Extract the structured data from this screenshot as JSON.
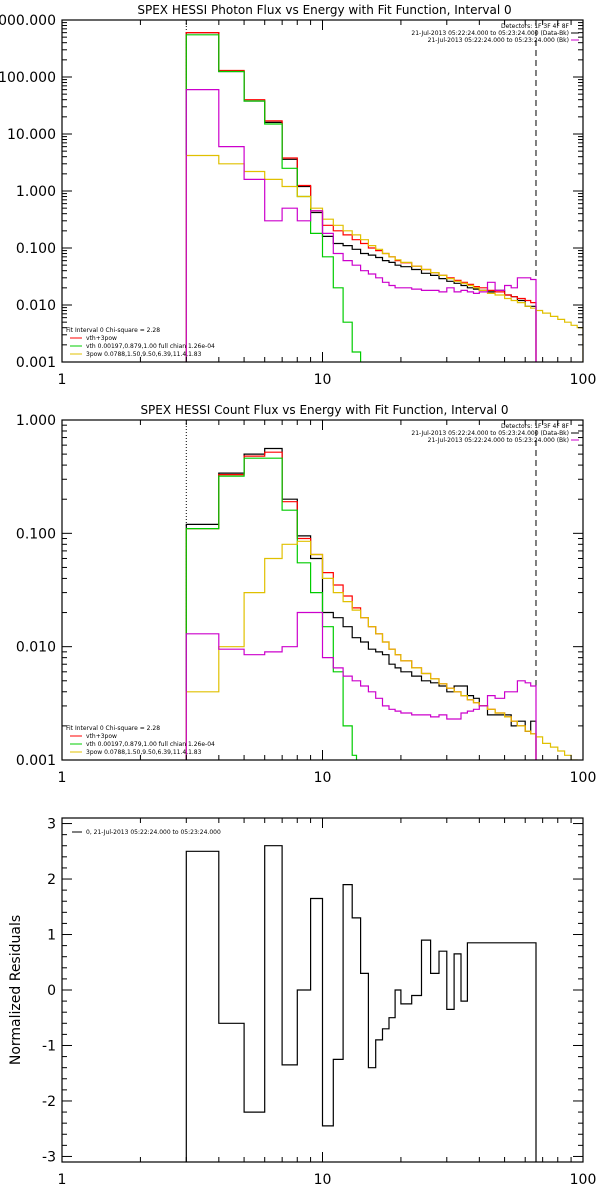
{
  "chart_data": [
    {
      "type": "line",
      "title": "SPEX HESSI Photon Flux vs Energy with Fit Function, Interval 0",
      "xscale": "log",
      "yscale": "log",
      "xlim": [
        1,
        100
      ],
      "ylim": [
        0.001,
        1000
      ],
      "xticks": [
        "1",
        "10",
        "100"
      ],
      "yticks": [
        "0.001",
        "0.010",
        "0.100",
        "1.000",
        "10.000",
        "100.000",
        "1000.000"
      ],
      "ytick_values": [
        0.001,
        0.01,
        0.1,
        1,
        10,
        100,
        1000
      ],
      "xlabel": "",
      "ylabel": "",
      "vlines": [
        {
          "x": 3.0,
          "style": "dotted"
        },
        {
          "x": 66,
          "style": "dashed"
        }
      ],
      "bin_edges": [
        3,
        3.5,
        4,
        4.5,
        5,
        5.5,
        6,
        6.5,
        7,
        7.5,
        8,
        8.5,
        9,
        9.5,
        10,
        10.5,
        11,
        11.5,
        12,
        12.5,
        13,
        13.5,
        14,
        15,
        16,
        17,
        18,
        19,
        20,
        22,
        24,
        26,
        28,
        30,
        32,
        34,
        36,
        38,
        40,
        43,
        46,
        50,
        53,
        56,
        60,
        63,
        66,
        70,
        75,
        80,
        85,
        90,
        95,
        100
      ],
      "legend_top": [
        "Detectors: 1F 3F 4F 8F",
        "21-Jul-2013 05:22:24.000 to 05:23:24.000 (Data-Bk)",
        "21-Jul-2013 05:22:24.000 to 05:23:24.000 (Bk)"
      ],
      "legend_bottom": [
        "Fit Interval 0   Chi-square = 2.28",
        "vth+3pow",
        "vth 0.00197,0.879,1.00  full chian 1.26e-04",
        "3pow 0.0788,1.50,9.50,6.39,11.4,1.83"
      ],
      "series": [
        {
          "name": "21-Jul-2013 05:22:24.000 to 05:23:24.000 (Data-Bk)",
          "color": "#000000",
          "values": [
            600,
            600,
            125,
            125,
            38,
            38,
            16,
            16,
            3.6,
            3.6,
            1.2,
            1.2,
            0.42,
            0.42,
            0.16,
            0.16,
            0.12,
            0.12,
            0.11,
            0.11,
            0.095,
            0.095,
            0.08,
            0.075,
            0.068,
            0.06,
            0.056,
            0.05,
            0.047,
            0.042,
            0.036,
            0.033,
            0.029,
            0.026,
            0.024,
            0.022,
            0.02,
            0.019,
            0.018,
            0.017,
            0.018,
            0.015,
            0.014,
            0.012,
            0.0095,
            0.0095
          ]
        },
        {
          "name": "vth+3pow",
          "color": "#ff0000",
          "values": [
            600,
            600,
            130,
            130,
            40,
            40,
            17,
            17,
            3.8,
            3.8,
            1.25,
            1.25,
            0.45,
            0.45,
            0.25,
            0.25,
            0.2,
            0.2,
            0.17,
            0.17,
            0.14,
            0.14,
            0.12,
            0.1,
            0.09,
            0.08,
            0.07,
            0.06,
            0.055,
            0.048,
            0.042,
            0.037,
            0.033,
            0.03,
            0.027,
            0.025,
            0.023,
            0.021,
            0.02,
            0.018,
            0.017,
            0.015,
            0.014,
            0.013,
            0.012,
            0.011
          ]
        },
        {
          "name": "vth 0.00197,0.879,1.00  full chian 1.26e-04",
          "color": "#00cc00",
          "values": [
            550,
            550,
            125,
            125,
            38,
            38,
            15,
            15,
            2.5,
            2.5,
            0.8,
            0.8,
            0.18,
            0.18,
            0.07,
            0.07,
            0.02,
            0.02,
            0.005,
            0.005,
            0.0015,
            0.0015,
            0.0008
          ]
        },
        {
          "name": "3pow 0.0788,1.50,9.50,6.39,11.4,1.83",
          "color": "#e0c000",
          "values": [
            4.2,
            4.2,
            3.0,
            3.0,
            2.2,
            2.2,
            1.6,
            1.6,
            1.2,
            1.2,
            0.8,
            0.8,
            0.5,
            0.5,
            0.32,
            0.32,
            0.25,
            0.25,
            0.2,
            0.2,
            0.17,
            0.17,
            0.14,
            0.11,
            0.095,
            0.08,
            0.07,
            0.062,
            0.056,
            0.048,
            0.042,
            0.037,
            0.033,
            0.029,
            0.026,
            0.024,
            0.022,
            0.02,
            0.018,
            0.016,
            0.015,
            0.013,
            0.012,
            0.011,
            0.0095,
            0.0088,
            0.008,
            0.0072,
            0.0063,
            0.0056,
            0.005,
            0.0044,
            0.004
          ]
        },
        {
          "name": "21-Jul-2013 05:22:24.000 to 05:23:24.000 (Bk)",
          "color": "#cc00cc",
          "values": [
            60,
            60,
            6,
            6,
            1.6,
            1.6,
            0.3,
            0.3,
            0.5,
            0.5,
            0.3,
            0.3,
            0.45,
            0.45,
            0.18,
            0.18,
            0.08,
            0.08,
            0.06,
            0.06,
            0.05,
            0.05,
            0.04,
            0.035,
            0.03,
            0.025,
            0.022,
            0.02,
            0.02,
            0.019,
            0.018,
            0.018,
            0.017,
            0.02,
            0.017,
            0.018,
            0.017,
            0.016,
            0.017,
            0.025,
            0.018,
            0.022,
            0.02,
            0.03,
            0.03,
            0.028
          ]
        }
      ]
    },
    {
      "type": "line",
      "title": "SPEX HESSI Count Flux vs Energy with Fit Function, Interval 0",
      "xscale": "log",
      "yscale": "log",
      "xlim": [
        1,
        100
      ],
      "ylim": [
        0.001,
        1
      ],
      "xticks": [
        "1",
        "10",
        "100"
      ],
      "yticks": [
        "0.001",
        "0.010",
        "0.100",
        "1.000"
      ],
      "ytick_values": [
        0.001,
        0.01,
        0.1,
        1
      ],
      "xlabel": "",
      "ylabel": "",
      "vlines": [
        {
          "x": 3.0,
          "style": "dotted"
        },
        {
          "x": 66,
          "style": "dashed"
        }
      ],
      "bin_edges": [
        3,
        3.5,
        4,
        4.5,
        5,
        5.5,
        6,
        6.5,
        7,
        7.5,
        8,
        8.5,
        9,
        9.5,
        10,
        10.5,
        11,
        11.5,
        12,
        12.5,
        13,
        13.5,
        14,
        15,
        16,
        17,
        18,
        19,
        20,
        22,
        24,
        26,
        28,
        30,
        32,
        34,
        36,
        38,
        40,
        43,
        46,
        50,
        53,
        56,
        60,
        63,
        66,
        70,
        75,
        80,
        85,
        90,
        95,
        100
      ],
      "legend_top": [
        "Detectors: 1F 3F 4F 8F",
        "21-Jul-2013 05:22:24.000 to 05:23:24.000 (Data-Bk)",
        "21-Jul-2013 05:22:24.000 to 05:23:24.000 (Bk)"
      ],
      "legend_bottom": [
        "Fit Interval 0   Chi-square = 2.28",
        "vth+3pow",
        "vth 0.00197,0.879,1.00  full chian 1.26e-04",
        "3pow 0.0788,1.50,9.50,6.39,11.4,1.83"
      ],
      "series": [
        {
          "name": "21-Jul-2013 05:22:24.000 to 05:23:24.000 (Data-Bk)",
          "color": "#000000",
          "values": [
            0.12,
            0.12,
            0.34,
            0.34,
            0.5,
            0.5,
            0.56,
            0.56,
            0.2,
            0.2,
            0.095,
            0.095,
            0.06,
            0.06,
            0.02,
            0.02,
            0.018,
            0.018,
            0.015,
            0.015,
            0.012,
            0.012,
            0.011,
            0.0095,
            0.009,
            0.0085,
            0.007,
            0.0065,
            0.006,
            0.0055,
            0.005,
            0.0048,
            0.0045,
            0.004,
            0.0045,
            0.0045,
            0.0037,
            0.0035,
            0.003,
            0.0025,
            0.0025,
            0.0025,
            0.002,
            0.0022,
            0.0018,
            0.0022
          ]
        },
        {
          "name": "vth+3pow",
          "color": "#ff0000",
          "values": [
            0.11,
            0.11,
            0.33,
            0.33,
            0.48,
            0.48,
            0.52,
            0.52,
            0.19,
            0.19,
            0.09,
            0.09,
            0.065,
            0.065,
            0.045,
            0.045,
            0.035,
            0.035,
            0.028,
            0.028,
            0.022,
            0.022,
            0.018,
            0.015,
            0.013,
            0.011,
            0.0095,
            0.0085,
            0.0075,
            0.0065,
            0.0058,
            0.0052,
            0.0047,
            0.0043,
            0.004,
            0.0037,
            0.0034,
            0.0032,
            0.003,
            0.0028,
            0.0026,
            0.0024,
            0.0022,
            0.002,
            0.0018,
            0.0017
          ]
        },
        {
          "name": "vth 0.00197,0.879,1.00  full chian 1.26e-04",
          "color": "#00cc00",
          "values": [
            0.11,
            0.11,
            0.32,
            0.32,
            0.46,
            0.46,
            0.46,
            0.46,
            0.16,
            0.16,
            0.055,
            0.055,
            0.03,
            0.03,
            0.015,
            0.015,
            0.006,
            0.006,
            0.002,
            0.002,
            0.0011
          ]
        },
        {
          "name": "3pow 0.0788,1.50,9.50,6.39,11.4,1.83",
          "color": "#e0c000",
          "values": [
            0.004,
            0.004,
            0.01,
            0.01,
            0.03,
            0.03,
            0.06,
            0.06,
            0.08,
            0.08,
            0.085,
            0.085,
            0.065,
            0.065,
            0.04,
            0.04,
            0.03,
            0.03,
            0.025,
            0.025,
            0.021,
            0.021,
            0.018,
            0.015,
            0.013,
            0.011,
            0.0095,
            0.0085,
            0.0075,
            0.0065,
            0.0058,
            0.0052,
            0.0047,
            0.0043,
            0.004,
            0.0037,
            0.0034,
            0.0032,
            0.003,
            0.0028,
            0.0026,
            0.0024,
            0.0022,
            0.002,
            0.0018,
            0.0017,
            0.0016,
            0.0014,
            0.0013,
            0.0012,
            0.0011,
            0.001,
            0.00095
          ]
        },
        {
          "name": "21-Jul-2013 05:22:24.000 to 05:23:24.000 (Bk)",
          "color": "#cc00cc",
          "values": [
            0.013,
            0.013,
            0.0095,
            0.0095,
            0.0085,
            0.0085,
            0.009,
            0.009,
            0.01,
            0.01,
            0.02,
            0.02,
            0.02,
            0.02,
            0.008,
            0.008,
            0.0065,
            0.0065,
            0.0055,
            0.0055,
            0.005,
            0.005,
            0.0045,
            0.004,
            0.0035,
            0.003,
            0.0028,
            0.0027,
            0.0026,
            0.0025,
            0.0025,
            0.0024,
            0.0025,
            0.0023,
            0.0023,
            0.0026,
            0.0027,
            0.0028,
            0.003,
            0.0037,
            0.0035,
            0.004,
            0.004,
            0.005,
            0.0048,
            0.0045
          ]
        }
      ]
    },
    {
      "type": "line",
      "title": "",
      "xscale": "log",
      "yscale": "linear",
      "xlim": [
        1,
        100
      ],
      "ylim": [
        -3.1,
        3.1
      ],
      "xticks": [
        "1",
        "10",
        "100"
      ],
      "yticks": [
        "-3",
        "-2",
        "-1",
        "0",
        "1",
        "2",
        "3"
      ],
      "ytick_values": [
        -3,
        -2,
        -1,
        0,
        1,
        2,
        3
      ],
      "xlabel": "",
      "ylabel": "Normalized Residuals",
      "legend_top": [
        "0, 21-Jul-2013 05:22:24.000 to 05:23:24.000"
      ],
      "bin_edges": [
        3,
        3.5,
        4,
        4.5,
        5,
        5.5,
        6,
        6.5,
        7,
        7.5,
        8,
        8.5,
        9,
        9.5,
        10,
        10.5,
        11,
        11.5,
        12,
        12.5,
        13,
        13.5,
        14,
        15,
        16,
        17,
        18,
        19,
        20,
        22,
        24,
        26,
        28,
        30,
        32,
        34,
        36,
        38,
        40,
        43,
        46,
        50,
        53,
        56,
        60,
        63,
        66
      ],
      "series": [
        {
          "name": "0, 21-Jul-2013 05:22:24.000 to 05:23:24.000",
          "color": "#000000",
          "values": [
            2.5,
            2.5,
            -0.6,
            -0.6,
            -2.2,
            -2.2,
            2.6,
            2.6,
            -1.35,
            -1.35,
            0,
            0,
            1.65,
            1.65,
            -2.45,
            -2.45,
            -1.25,
            -1.25,
            1.9,
            1.9,
            1.3,
            1.3,
            0.3,
            -1.4,
            -0.9,
            -0.7,
            -0.5,
            0,
            -0.25,
            -0.1,
            0.9,
            0.3,
            0.7,
            -0.35,
            0.65,
            -0.2,
            0.85,
            0.85,
            0.85,
            0.85,
            0.85,
            0.85,
            0.85,
            0.85,
            0.85,
            0.85
          ]
        }
      ]
    }
  ]
}
